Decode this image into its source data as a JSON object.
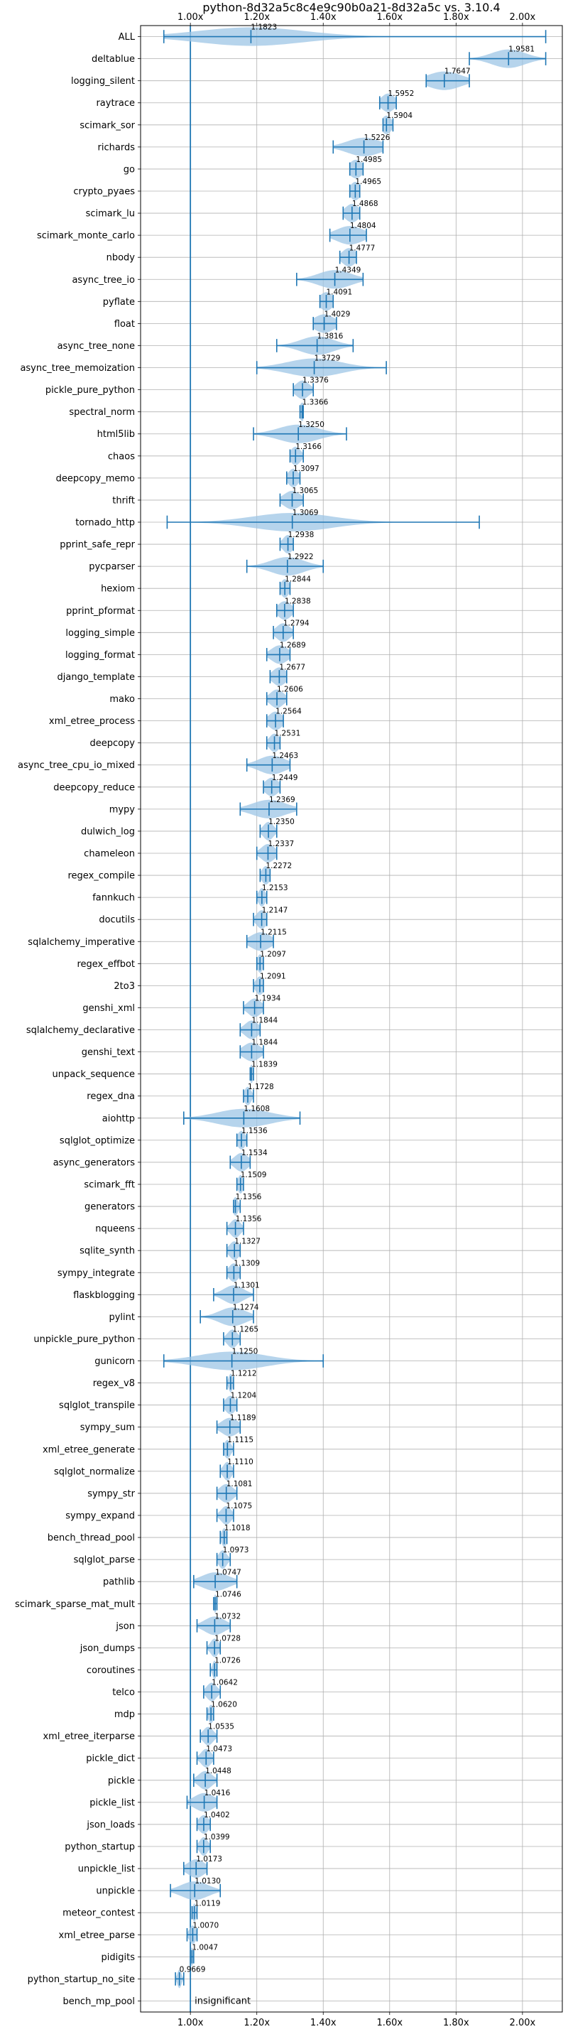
{
  "chart_data": {
    "type": "violin",
    "title": "python-8d32a5c8c4e9c90b0a21-8d32a5c vs. 3.10.4",
    "xlabel": "",
    "ylabel": "",
    "xlim": [
      0.85,
      2.12
    ],
    "xticks": [
      1.0,
      1.2,
      1.4,
      1.6,
      1.8,
      2.0
    ],
    "xtick_labels": [
      "1.00x",
      "1.20x",
      "1.40x",
      "1.60x",
      "1.80x",
      "2.00x"
    ],
    "reference_line": 1.0,
    "grid": true,
    "annotations": [
      {
        "text": "insignificant",
        "row": "bench_mp_pool"
      }
    ],
    "benchmarks": [
      {
        "name": "ALL",
        "median": 1.1823,
        "min": 0.92,
        "max": 2.07,
        "spread": 0.16
      },
      {
        "name": "deltablue",
        "median": 1.9581,
        "min": 1.84,
        "max": 2.07,
        "spread": 0.05
      },
      {
        "name": "logging_silent",
        "median": 1.7647,
        "min": 1.71,
        "max": 1.84,
        "spread": 0.05
      },
      {
        "name": "raytrace",
        "median": 1.5952,
        "min": 1.57,
        "max": 1.62,
        "spread": 0.02
      },
      {
        "name": "scimark_sor",
        "median": 1.5904,
        "min": 1.58,
        "max": 1.61,
        "spread": 0.015
      },
      {
        "name": "richards",
        "median": 1.5226,
        "min": 1.43,
        "max": 1.58,
        "spread": 0.05
      },
      {
        "name": "go",
        "median": 1.4985,
        "min": 1.48,
        "max": 1.52,
        "spread": 0.02
      },
      {
        "name": "crypto_pyaes",
        "median": 1.4965,
        "min": 1.48,
        "max": 1.51,
        "spread": 0.015
      },
      {
        "name": "scimark_lu",
        "median": 1.4868,
        "min": 1.46,
        "max": 1.51,
        "spread": 0.02
      },
      {
        "name": "scimark_monte_carlo",
        "median": 1.4804,
        "min": 1.42,
        "max": 1.53,
        "spread": 0.04
      },
      {
        "name": "nbody",
        "median": 1.4777,
        "min": 1.45,
        "max": 1.5,
        "spread": 0.02
      },
      {
        "name": "async_tree_io",
        "median": 1.4349,
        "min": 1.32,
        "max": 1.52,
        "spread": 0.05
      },
      {
        "name": "pyflate",
        "median": 1.4091,
        "min": 1.39,
        "max": 1.43,
        "spread": 0.02
      },
      {
        "name": "float",
        "median": 1.4029,
        "min": 1.37,
        "max": 1.44,
        "spread": 0.03
      },
      {
        "name": "async_tree_none",
        "median": 1.3816,
        "min": 1.26,
        "max": 1.49,
        "spread": 0.05
      },
      {
        "name": "async_tree_memoization",
        "median": 1.3729,
        "min": 1.2,
        "max": 1.59,
        "spread": 0.08
      },
      {
        "name": "pickle_pure_python",
        "median": 1.3376,
        "min": 1.31,
        "max": 1.37,
        "spread": 0.02
      },
      {
        "name": "spectral_norm",
        "median": 1.3366,
        "min": 1.33,
        "max": 1.34,
        "spread": 0.008
      },
      {
        "name": "html5lib",
        "median": 1.325,
        "min": 1.19,
        "max": 1.47,
        "spread": 0.06
      },
      {
        "name": "chaos",
        "median": 1.3166,
        "min": 1.3,
        "max": 1.34,
        "spread": 0.015
      },
      {
        "name": "deepcopy_memo",
        "median": 1.3097,
        "min": 1.29,
        "max": 1.33,
        "spread": 0.015
      },
      {
        "name": "thrift",
        "median": 1.3065,
        "min": 1.27,
        "max": 1.34,
        "spread": 0.025
      },
      {
        "name": "tornado_http",
        "median": 1.3069,
        "min": 0.93,
        "max": 1.87,
        "spread": 0.12
      },
      {
        "name": "pprint_safe_repr",
        "median": 1.2938,
        "min": 1.27,
        "max": 1.31,
        "spread": 0.015
      },
      {
        "name": "pycparser",
        "median": 1.2922,
        "min": 1.17,
        "max": 1.4,
        "spread": 0.05
      },
      {
        "name": "hexiom",
        "median": 1.2844,
        "min": 1.27,
        "max": 1.3,
        "spread": 0.012
      },
      {
        "name": "pprint_pformat",
        "median": 1.2838,
        "min": 1.26,
        "max": 1.31,
        "spread": 0.02
      },
      {
        "name": "logging_simple",
        "median": 1.2794,
        "min": 1.25,
        "max": 1.31,
        "spread": 0.02
      },
      {
        "name": "logging_format",
        "median": 1.2689,
        "min": 1.23,
        "max": 1.3,
        "spread": 0.025
      },
      {
        "name": "django_template",
        "median": 1.2677,
        "min": 1.24,
        "max": 1.29,
        "spread": 0.02
      },
      {
        "name": "mako",
        "median": 1.2606,
        "min": 1.23,
        "max": 1.29,
        "spread": 0.02
      },
      {
        "name": "xml_etree_process",
        "median": 1.2564,
        "min": 1.23,
        "max": 1.28,
        "spread": 0.02
      },
      {
        "name": "deepcopy",
        "median": 1.2531,
        "min": 1.23,
        "max": 1.27,
        "spread": 0.015
      },
      {
        "name": "async_tree_cpu_io_mixed",
        "median": 1.2463,
        "min": 1.17,
        "max": 1.3,
        "spread": 0.04
      },
      {
        "name": "deepcopy_reduce",
        "median": 1.2449,
        "min": 1.22,
        "max": 1.27,
        "spread": 0.02
      },
      {
        "name": "mypy",
        "median": 1.2369,
        "min": 1.15,
        "max": 1.32,
        "spread": 0.05
      },
      {
        "name": "dulwich_log",
        "median": 1.235,
        "min": 1.21,
        "max": 1.26,
        "spread": 0.015
      },
      {
        "name": "chameleon",
        "median": 1.2337,
        "min": 1.2,
        "max": 1.26,
        "spread": 0.02
      },
      {
        "name": "regex_compile",
        "median": 1.2272,
        "min": 1.21,
        "max": 1.24,
        "spread": 0.012
      },
      {
        "name": "fannkuch",
        "median": 1.2153,
        "min": 1.2,
        "max": 1.23,
        "spread": 0.01
      },
      {
        "name": "docutils",
        "median": 1.2147,
        "min": 1.19,
        "max": 1.23,
        "spread": 0.015
      },
      {
        "name": "sqlalchemy_imperative",
        "median": 1.2115,
        "min": 1.17,
        "max": 1.25,
        "spread": 0.03
      },
      {
        "name": "regex_effbot",
        "median": 1.2097,
        "min": 1.2,
        "max": 1.22,
        "spread": 0.008
      },
      {
        "name": "2to3",
        "median": 1.2091,
        "min": 1.19,
        "max": 1.22,
        "spread": 0.012
      },
      {
        "name": "genshi_xml",
        "median": 1.1934,
        "min": 1.16,
        "max": 1.22,
        "spread": 0.02
      },
      {
        "name": "sqlalchemy_declarative",
        "median": 1.1844,
        "min": 1.15,
        "max": 1.21,
        "spread": 0.02
      },
      {
        "name": "genshi_text",
        "median": 1.1844,
        "min": 1.15,
        "max": 1.22,
        "spread": 0.025
      },
      {
        "name": "unpack_sequence",
        "median": 1.1839,
        "min": 1.18,
        "max": 1.19,
        "spread": 0.005
      },
      {
        "name": "regex_dna",
        "median": 1.1728,
        "min": 1.16,
        "max": 1.19,
        "spread": 0.01
      },
      {
        "name": "aiohttp",
        "median": 1.1608,
        "min": 0.98,
        "max": 1.33,
        "spread": 0.08
      },
      {
        "name": "sqlglot_optimize",
        "median": 1.1536,
        "min": 1.14,
        "max": 1.17,
        "spread": 0.012
      },
      {
        "name": "async_generators",
        "median": 1.1534,
        "min": 1.12,
        "max": 1.18,
        "spread": 0.02
      },
      {
        "name": "scimark_fft",
        "median": 1.1509,
        "min": 1.14,
        "max": 1.16,
        "spread": 0.008
      },
      {
        "name": "generators",
        "median": 1.1356,
        "min": 1.13,
        "max": 1.15,
        "spread": 0.008
      },
      {
        "name": "nqueens",
        "median": 1.1356,
        "min": 1.11,
        "max": 1.16,
        "spread": 0.015
      },
      {
        "name": "sqlite_synth",
        "median": 1.1327,
        "min": 1.11,
        "max": 1.15,
        "spread": 0.015
      },
      {
        "name": "sympy_integrate",
        "median": 1.1309,
        "min": 1.11,
        "max": 1.15,
        "spread": 0.015
      },
      {
        "name": "flaskblogging",
        "median": 1.1301,
        "min": 1.07,
        "max": 1.19,
        "spread": 0.03
      },
      {
        "name": "pylint",
        "median": 1.1274,
        "min": 1.03,
        "max": 1.19,
        "spread": 0.04
      },
      {
        "name": "unpickle_pure_python",
        "median": 1.1265,
        "min": 1.1,
        "max": 1.15,
        "spread": 0.015
      },
      {
        "name": "gunicorn",
        "median": 1.125,
        "min": 0.92,
        "max": 1.4,
        "spread": 0.1
      },
      {
        "name": "regex_v8",
        "median": 1.1212,
        "min": 1.11,
        "max": 1.13,
        "spread": 0.006
      },
      {
        "name": "sqlglot_transpile",
        "median": 1.1204,
        "min": 1.1,
        "max": 1.14,
        "spread": 0.015
      },
      {
        "name": "sympy_sum",
        "median": 1.1189,
        "min": 1.08,
        "max": 1.15,
        "spread": 0.025
      },
      {
        "name": "xml_etree_generate",
        "median": 1.1115,
        "min": 1.1,
        "max": 1.13,
        "spread": 0.01
      },
      {
        "name": "sqlglot_normalize",
        "median": 1.111,
        "min": 1.09,
        "max": 1.13,
        "spread": 0.012
      },
      {
        "name": "sympy_str",
        "median": 1.1081,
        "min": 1.08,
        "max": 1.14,
        "spread": 0.02
      },
      {
        "name": "sympy_expand",
        "median": 1.1075,
        "min": 1.08,
        "max": 1.13,
        "spread": 0.015
      },
      {
        "name": "bench_thread_pool",
        "median": 1.1018,
        "min": 1.09,
        "max": 1.11,
        "spread": 0.008
      },
      {
        "name": "sqlglot_parse",
        "median": 1.0973,
        "min": 1.08,
        "max": 1.12,
        "spread": 0.012
      },
      {
        "name": "pathlib",
        "median": 1.0747,
        "min": 1.01,
        "max": 1.14,
        "spread": 0.04
      },
      {
        "name": "scimark_sparse_mat_mult",
        "median": 1.0746,
        "min": 1.07,
        "max": 1.08,
        "spread": 0.004
      },
      {
        "name": "json",
        "median": 1.0732,
        "min": 1.02,
        "max": 1.12,
        "spread": 0.03
      },
      {
        "name": "json_dumps",
        "median": 1.0728,
        "min": 1.05,
        "max": 1.09,
        "spread": 0.012
      },
      {
        "name": "coroutines",
        "median": 1.0726,
        "min": 1.06,
        "max": 1.08,
        "spread": 0.006
      },
      {
        "name": "telco",
        "median": 1.0642,
        "min": 1.04,
        "max": 1.09,
        "spread": 0.015
      },
      {
        "name": "mdp",
        "median": 1.062,
        "min": 1.05,
        "max": 1.07,
        "spread": 0.008
      },
      {
        "name": "xml_etree_iterparse",
        "median": 1.0535,
        "min": 1.03,
        "max": 1.08,
        "spread": 0.015
      },
      {
        "name": "pickle_dict",
        "median": 1.0473,
        "min": 1.02,
        "max": 1.07,
        "spread": 0.015
      },
      {
        "name": "pickle",
        "median": 1.0448,
        "min": 1.01,
        "max": 1.08,
        "spread": 0.02
      },
      {
        "name": "pickle_list",
        "median": 1.0416,
        "min": 0.99,
        "max": 1.08,
        "spread": 0.03
      },
      {
        "name": "json_loads",
        "median": 1.0402,
        "min": 1.02,
        "max": 1.06,
        "spread": 0.015
      },
      {
        "name": "python_startup",
        "median": 1.0399,
        "min": 1.02,
        "max": 1.06,
        "spread": 0.012
      },
      {
        "name": "unpickle_list",
        "median": 1.0173,
        "min": 0.98,
        "max": 1.05,
        "spread": 0.025
      },
      {
        "name": "unpickle",
        "median": 1.013,
        "min": 0.94,
        "max": 1.09,
        "spread": 0.04
      },
      {
        "name": "meteor_contest",
        "median": 1.0119,
        "min": 1.005,
        "max": 1.02,
        "spread": 0.005
      },
      {
        "name": "xml_etree_parse",
        "median": 1.007,
        "min": 0.99,
        "max": 1.02,
        "spread": 0.01
      },
      {
        "name": "pidigits",
        "median": 1.0047,
        "min": 1.0,
        "max": 1.01,
        "spread": 0.004
      },
      {
        "name": "python_startup_no_site",
        "median": 0.9669,
        "min": 0.955,
        "max": 0.98,
        "spread": 0.006
      },
      {
        "name": "bench_mp_pool",
        "median": null,
        "min": null,
        "max": null,
        "spread": null
      }
    ]
  },
  "colors": {
    "violin_fill": "#9ec5e6",
    "line": "#1f77b4",
    "grid": "#b0b0b0",
    "text": "#000000"
  }
}
